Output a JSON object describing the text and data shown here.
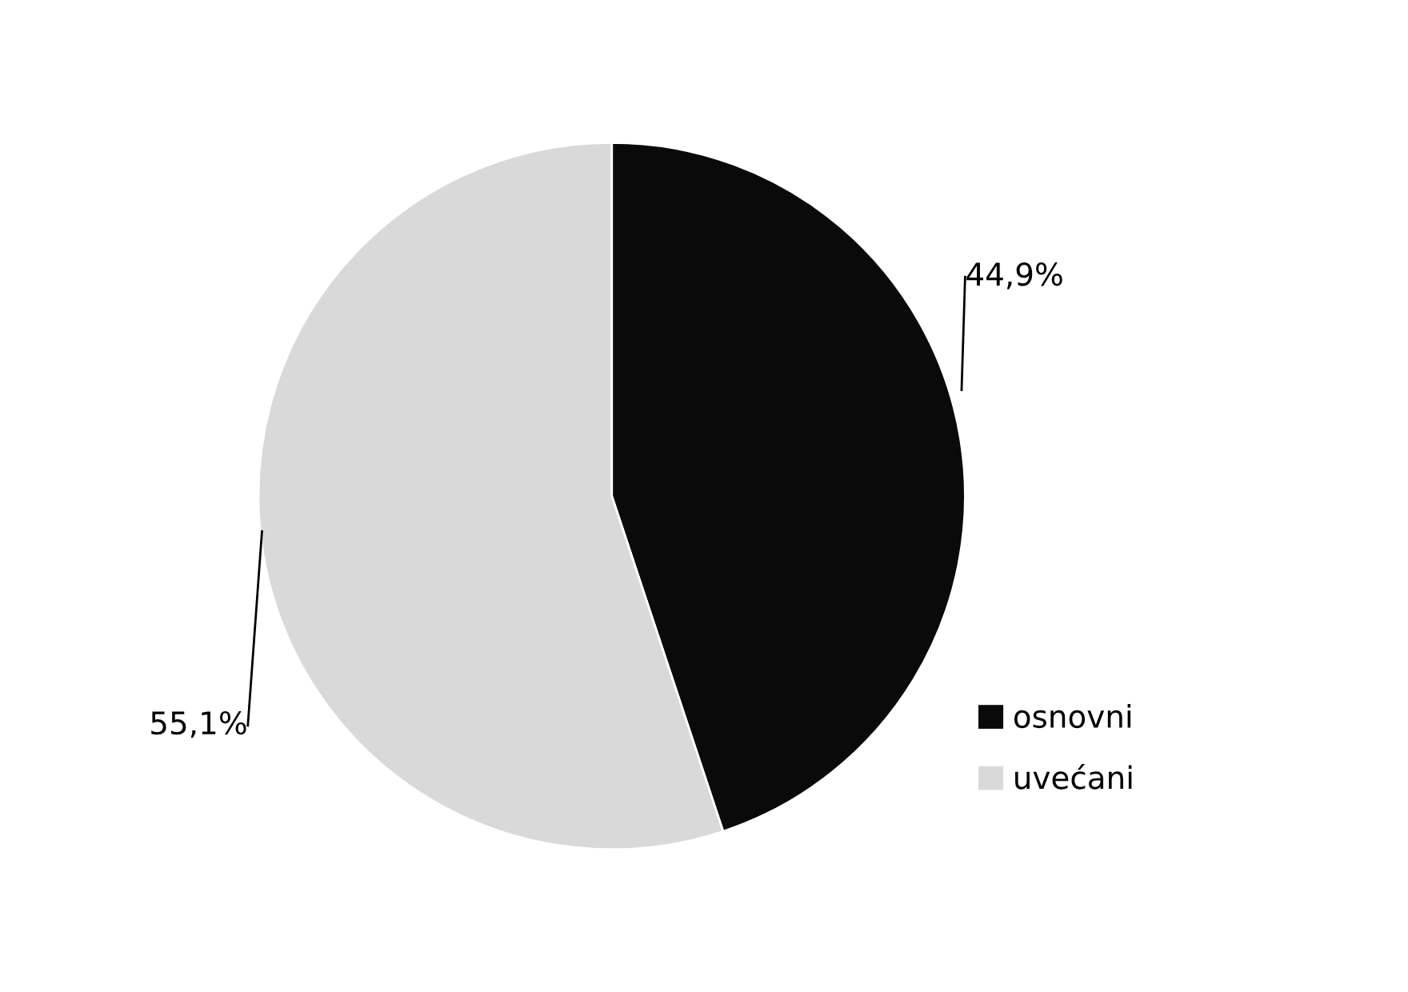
{
  "chart_data": {
    "type": "pie",
    "categories": [
      "osnovni",
      "uvećani"
    ],
    "values": [
      44.9,
      55.1
    ],
    "colors": [
      "#0a0a0a",
      "#d9d9d9"
    ],
    "value_labels": [
      "44,9%",
      "55,1%"
    ],
    "legend": "bottom right"
  }
}
